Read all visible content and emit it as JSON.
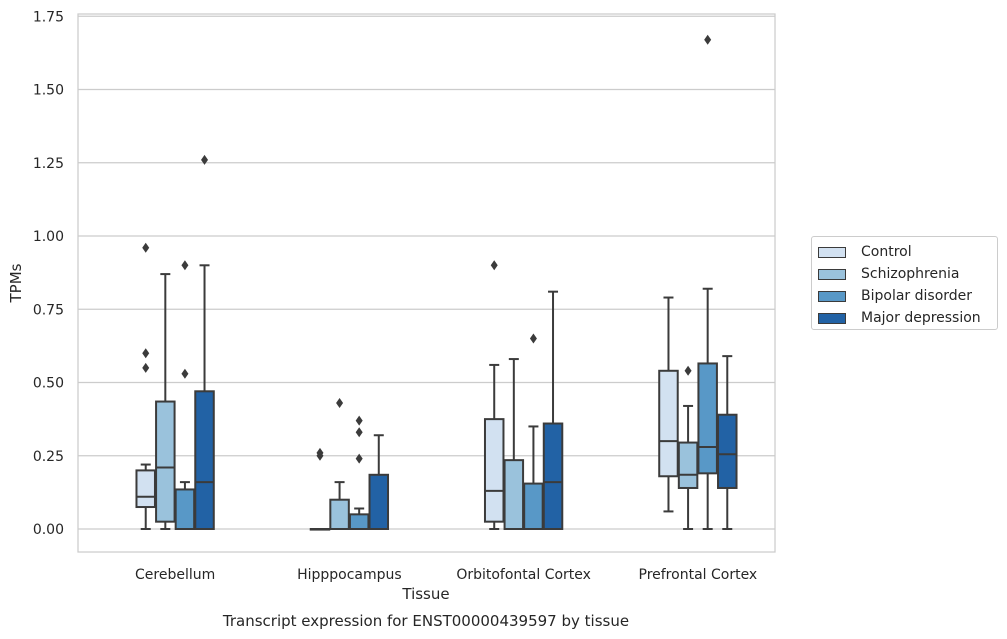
{
  "chart_data": {
    "type": "box",
    "xlabel": "Tissue",
    "ylabel": "TPMs",
    "caption": "Transcript expression for ENST00000439597 by tissue",
    "ylim": [
      -0.08,
      1.75
    ],
    "yticks": [
      0.0,
      0.25,
      0.5,
      0.75,
      1.0,
      1.25,
      1.5,
      1.75
    ],
    "ytick_labels": [
      "0.00",
      "0.25",
      "0.50",
      "0.75",
      "1.00",
      "1.25",
      "1.50",
      "1.75"
    ],
    "grid": "horizontal",
    "legend_placement": "right",
    "categories": [
      "Cerebellum",
      "Hipppocampus",
      "Orbitofontal Cortex",
      "Prefrontal Cortex"
    ],
    "series": [
      {
        "name": "Control",
        "color": "#d2e1f1",
        "boxes": [
          {
            "whislo": 0.0,
            "q1": 0.075,
            "med": 0.11,
            "q3": 0.2,
            "whishi": 0.22,
            "fliers": [
              0.55,
              0.6,
              0.96
            ]
          },
          {
            "whislo": 0.0,
            "q1": 0.0,
            "med": 0.0,
            "q3": 0.0,
            "whishi": 0.0,
            "fliers": [
              0.25,
              0.26
            ]
          },
          {
            "whislo": 0.0,
            "q1": 0.025,
            "med": 0.13,
            "q3": 0.375,
            "whishi": 0.56,
            "fliers": [
              0.9
            ]
          },
          {
            "whislo": 0.06,
            "q1": 0.18,
            "med": 0.3,
            "q3": 0.54,
            "whishi": 0.79,
            "fliers": []
          }
        ]
      },
      {
        "name": "Schizophrenia",
        "color": "#9ac2dc",
        "boxes": [
          {
            "whislo": 0.0,
            "q1": 0.025,
            "med": 0.21,
            "q3": 0.435,
            "whishi": 0.87,
            "fliers": []
          },
          {
            "whislo": 0.0,
            "q1": 0.0,
            "med": 0.0,
            "q3": 0.1,
            "whishi": 0.16,
            "fliers": [
              0.43
            ]
          },
          {
            "whislo": 0.0,
            "q1": 0.0,
            "med": 0.0,
            "q3": 0.235,
            "whishi": 0.58,
            "fliers": []
          },
          {
            "whislo": 0.0,
            "q1": 0.14,
            "med": 0.185,
            "q3": 0.295,
            "whishi": 0.42,
            "fliers": [
              0.54
            ]
          }
        ]
      },
      {
        "name": "Bipolar disorder",
        "color": "#5898c7",
        "boxes": [
          {
            "whislo": 0.0,
            "q1": 0.0,
            "med": 0.0,
            "q3": 0.135,
            "whishi": 0.16,
            "fliers": [
              0.53,
              0.9
            ]
          },
          {
            "whislo": 0.0,
            "q1": 0.0,
            "med": 0.0,
            "q3": 0.05,
            "whishi": 0.07,
            "fliers": [
              0.24,
              0.33,
              0.37
            ]
          },
          {
            "whislo": 0.0,
            "q1": 0.0,
            "med": 0.0,
            "q3": 0.155,
            "whishi": 0.35,
            "fliers": [
              0.65
            ]
          },
          {
            "whislo": 0.0,
            "q1": 0.19,
            "med": 0.28,
            "q3": 0.565,
            "whishi": 0.82,
            "fliers": [
              1.67
            ]
          }
        ]
      },
      {
        "name": "Major depression",
        "color": "#2262a5",
        "boxes": [
          {
            "whislo": 0.0,
            "q1": 0.0,
            "med": 0.16,
            "q3": 0.47,
            "whishi": 0.9,
            "fliers": [
              1.26
            ]
          },
          {
            "whislo": 0.0,
            "q1": 0.0,
            "med": 0.0,
            "q3": 0.185,
            "whishi": 0.32,
            "fliers": []
          },
          {
            "whislo": 0.0,
            "q1": 0.0,
            "med": 0.16,
            "q3": 0.36,
            "whishi": 0.81,
            "fliers": []
          },
          {
            "whislo": 0.0,
            "q1": 0.14,
            "med": 0.255,
            "q3": 0.39,
            "whishi": 0.59,
            "fliers": []
          }
        ]
      }
    ]
  }
}
